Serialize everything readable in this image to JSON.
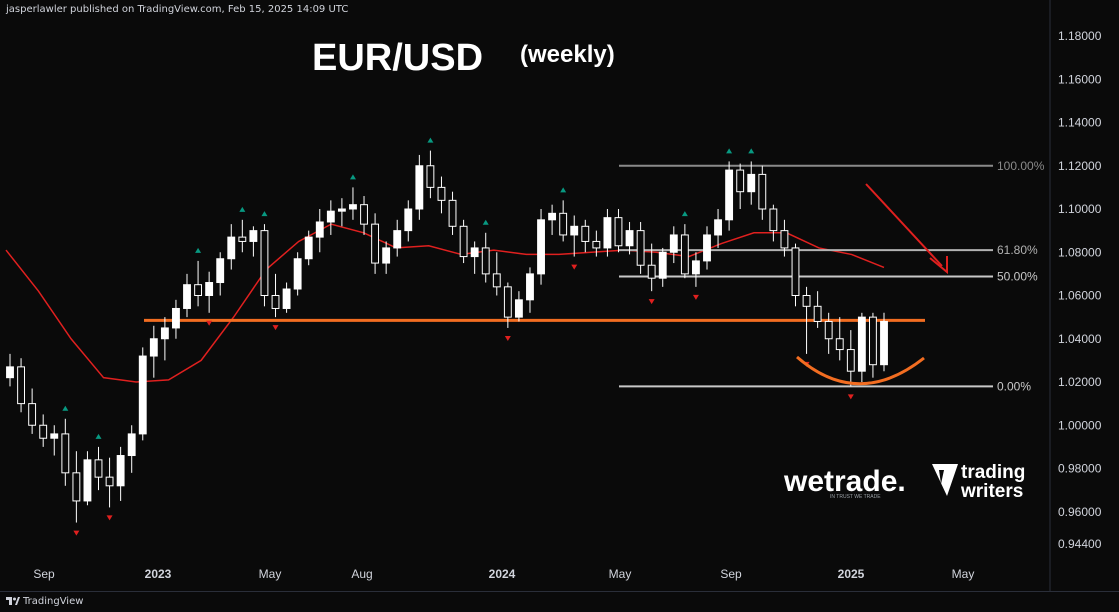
{
  "publisher_line": "jasperlawler published on TradingView.com, Feb 15, 2025 14:09 UTC",
  "footer": {
    "brand": "TradingView"
  },
  "brand_logos": {
    "wetrade": "wetrade.",
    "wetrade_tag": "IN TRUST WE TRADE",
    "trading_writers_top": "trading",
    "trading_writers_bottom": "writers"
  },
  "chart_data": {
    "type": "candlestick",
    "title": "EUR/USD",
    "subtitle": "(weekly)",
    "ylim": [
      0.94,
      1.19
    ],
    "y_ticks": [
      "1.18000",
      "1.16000",
      "1.14000",
      "1.12000",
      "1.10000",
      "1.08000",
      "1.06000",
      "1.04000",
      "1.02000",
      "1.00000",
      "0.98000",
      "0.96000",
      "0.94400"
    ],
    "x_ticks": [
      "Sep",
      "2023",
      "May",
      "Aug",
      "2024",
      "May",
      "Sep",
      "2025",
      "May"
    ],
    "fib_levels": [
      {
        "label": "100.00%",
        "value": 1.12,
        "color": "#8a8a8a"
      },
      {
        "label": "61.80%",
        "value": 1.081,
        "color": "#b2b2b2"
      },
      {
        "label": "50.00%",
        "value": 1.0688,
        "color": "#c8c8c8"
      },
      {
        "label": "0.00%",
        "value": 1.018,
        "color": "#c8c8c8"
      }
    ],
    "support_line": {
      "value": 1.0485,
      "color": "#f26d21"
    },
    "moving_average": {
      "color": "#e0201f",
      "values": [
        1.081,
        1.062,
        1.04,
        1.022,
        1.02,
        1.021,
        1.03,
        1.05,
        1.072,
        1.085,
        1.093,
        1.089,
        1.082,
        1.083,
        1.079,
        1.081,
        1.079,
        1.079,
        1.08,
        1.081,
        1.08,
        1.078,
        1.084,
        1.089,
        1.089,
        1.082,
        1.079,
        1.073
      ]
    },
    "candles": [
      [
        1.022,
        1.033,
        1.018,
        1.027
      ],
      [
        1.027,
        1.031,
        1.006,
        1.01
      ],
      [
        1.01,
        1.017,
        0.996,
        1.0
      ],
      [
        1.0,
        1.005,
        0.99,
        0.994
      ],
      [
        0.994,
        1.0,
        0.986,
        0.996
      ],
      [
        0.996,
        1.003,
        0.972,
        0.978
      ],
      [
        0.978,
        0.988,
        0.955,
        0.965
      ],
      [
        0.965,
        0.988,
        0.963,
        0.984
      ],
      [
        0.984,
        0.99,
        0.97,
        0.976
      ],
      [
        0.976,
        0.985,
        0.962,
        0.972
      ],
      [
        0.972,
        0.99,
        0.965,
        0.986
      ],
      [
        0.986,
        1.0,
        0.978,
        0.996
      ],
      [
        0.996,
        1.036,
        0.993,
        1.032
      ],
      [
        1.032,
        1.046,
        1.022,
        1.04
      ],
      [
        1.04,
        1.05,
        1.03,
        1.045
      ],
      [
        1.045,
        1.058,
        1.04,
        1.054
      ],
      [
        1.054,
        1.07,
        1.05,
        1.065
      ],
      [
        1.065,
        1.076,
        1.055,
        1.06
      ],
      [
        1.06,
        1.071,
        1.052,
        1.066
      ],
      [
        1.066,
        1.08,
        1.06,
        1.077
      ],
      [
        1.077,
        1.093,
        1.072,
        1.087
      ],
      [
        1.087,
        1.095,
        1.08,
        1.085
      ],
      [
        1.085,
        1.092,
        1.078,
        1.09
      ],
      [
        1.09,
        1.093,
        1.055,
        1.06
      ],
      [
        1.06,
        1.07,
        1.05,
        1.054
      ],
      [
        1.054,
        1.066,
        1.052,
        1.063
      ],
      [
        1.063,
        1.08,
        1.06,
        1.077
      ],
      [
        1.077,
        1.09,
        1.074,
        1.087
      ],
      [
        1.087,
        1.1,
        1.08,
        1.094
      ],
      [
        1.094,
        1.104,
        1.088,
        1.099
      ],
      [
        1.099,
        1.105,
        1.092,
        1.1
      ],
      [
        1.1,
        1.11,
        1.095,
        1.102
      ],
      [
        1.102,
        1.106,
        1.088,
        1.093
      ],
      [
        1.093,
        1.098,
        1.07,
        1.075
      ],
      [
        1.075,
        1.085,
        1.07,
        1.082
      ],
      [
        1.082,
        1.095,
        1.078,
        1.09
      ],
      [
        1.09,
        1.104,
        1.085,
        1.1
      ],
      [
        1.1,
        1.125,
        1.095,
        1.12
      ],
      [
        1.12,
        1.127,
        1.105,
        1.11
      ],
      [
        1.11,
        1.115,
        1.098,
        1.104
      ],
      [
        1.104,
        1.108,
        1.088,
        1.092
      ],
      [
        1.092,
        1.095,
        1.075,
        1.078
      ],
      [
        1.078,
        1.085,
        1.07,
        1.082
      ],
      [
        1.082,
        1.089,
        1.066,
        1.07
      ],
      [
        1.07,
        1.08,
        1.06,
        1.064
      ],
      [
        1.064,
        1.066,
        1.045,
        1.05
      ],
      [
        1.05,
        1.062,
        1.048,
        1.058
      ],
      [
        1.058,
        1.073,
        1.052,
        1.07
      ],
      [
        1.07,
        1.1,
        1.065,
        1.095
      ],
      [
        1.095,
        1.102,
        1.088,
        1.098
      ],
      [
        1.098,
        1.104,
        1.085,
        1.088
      ],
      [
        1.088,
        1.097,
        1.078,
        1.092
      ],
      [
        1.092,
        1.095,
        1.08,
        1.085
      ],
      [
        1.085,
        1.09,
        1.078,
        1.082
      ],
      [
        1.082,
        1.1,
        1.078,
        1.096
      ],
      [
        1.096,
        1.1,
        1.08,
        1.083
      ],
      [
        1.083,
        1.094,
        1.079,
        1.09
      ],
      [
        1.09,
        1.094,
        1.07,
        1.074
      ],
      [
        1.074,
        1.084,
        1.062,
        1.068
      ],
      [
        1.068,
        1.082,
        1.064,
        1.08
      ],
      [
        1.08,
        1.092,
        1.075,
        1.088
      ],
      [
        1.088,
        1.093,
        1.068,
        1.07
      ],
      [
        1.07,
        1.08,
        1.064,
        1.076
      ],
      [
        1.076,
        1.092,
        1.072,
        1.088
      ],
      [
        1.088,
        1.1,
        1.082,
        1.095
      ],
      [
        1.095,
        1.122,
        1.09,
        1.118
      ],
      [
        1.118,
        1.121,
        1.1,
        1.108
      ],
      [
        1.108,
        1.122,
        1.102,
        1.116
      ],
      [
        1.116,
        1.12,
        1.095,
        1.1
      ],
      [
        1.1,
        1.102,
        1.085,
        1.09
      ],
      [
        1.09,
        1.095,
        1.078,
        1.082
      ],
      [
        1.082,
        1.084,
        1.055,
        1.06
      ],
      [
        1.06,
        1.064,
        1.033,
        1.055
      ],
      [
        1.055,
        1.062,
        1.045,
        1.048
      ],
      [
        1.048,
        1.052,
        1.033,
        1.04
      ],
      [
        1.04,
        1.05,
        1.03,
        1.035
      ],
      [
        1.035,
        1.044,
        1.018,
        1.025
      ],
      [
        1.025,
        1.052,
        1.02,
        1.05
      ],
      [
        1.05,
        1.052,
        1.022,
        1.028
      ],
      [
        1.028,
        1.052,
        1.025,
        1.048
      ]
    ],
    "arrow_color": "#e0201f",
    "brand_colors": {
      "up": "#ffffff",
      "down": "#ffffff",
      "up_marker": "#089981",
      "down_marker": "#e0201f"
    }
  }
}
